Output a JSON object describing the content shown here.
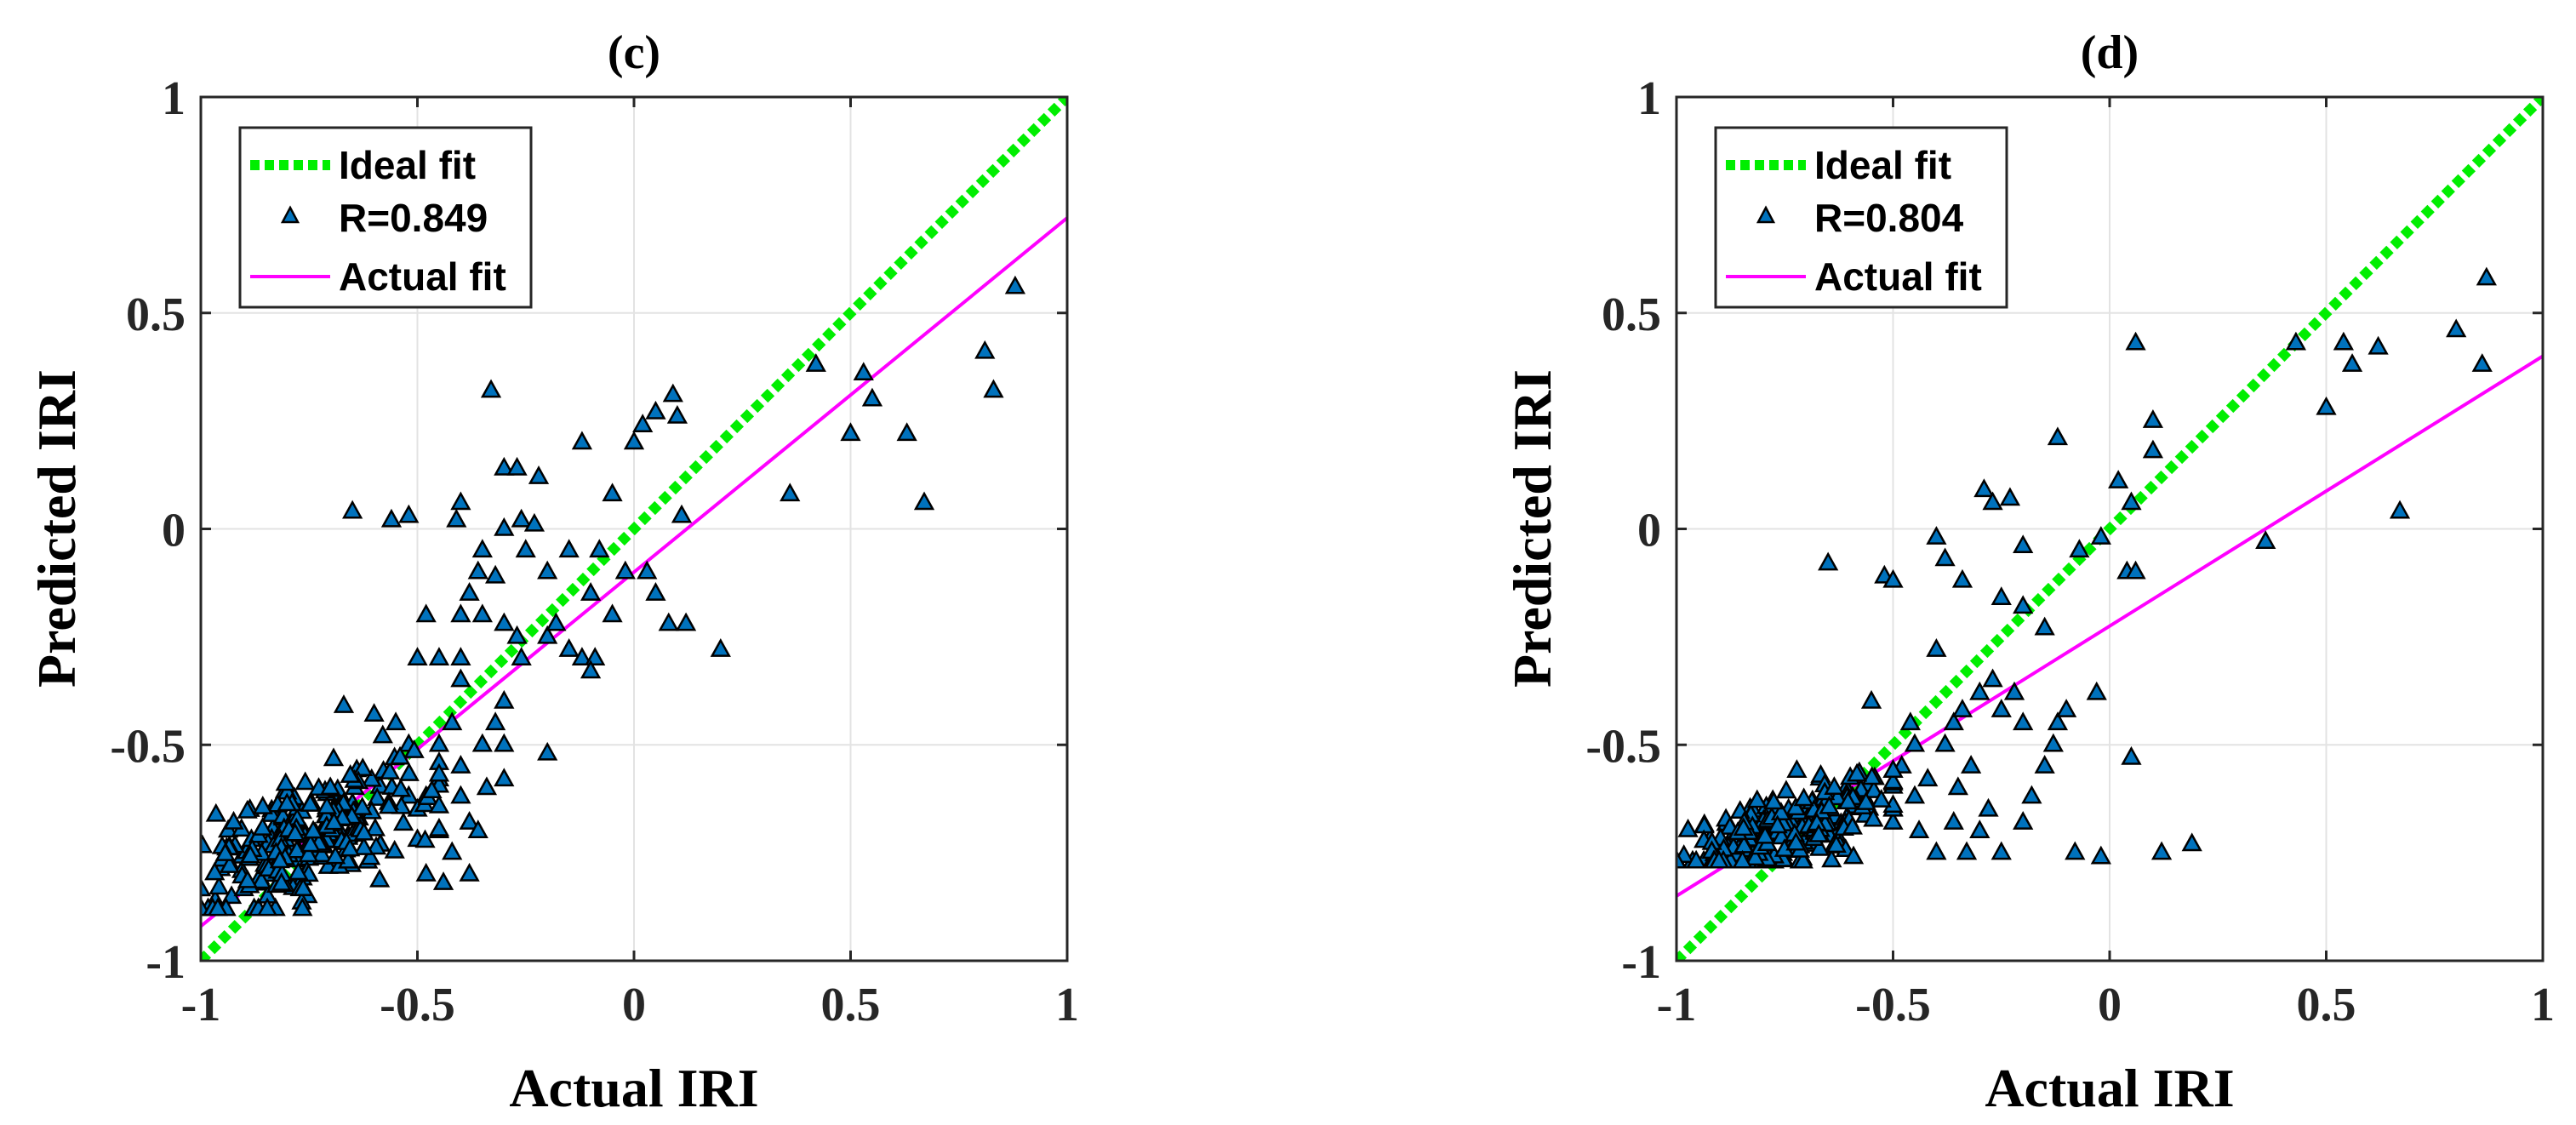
{
  "chart_data": [
    {
      "type": "scatter",
      "title": "(c)",
      "xlabel": "Actual IRI",
      "ylabel": "Predicted IRI",
      "xlim": [
        -1,
        1
      ],
      "ylim": [
        -1,
        1
      ],
      "xticks": [
        "-1",
        "-0.5",
        "0",
        "0.5",
        "1"
      ],
      "yticks": [
        "-1",
        "-0.5",
        "0",
        "0.5",
        "1"
      ],
      "grid": true,
      "legend_position": "top-left",
      "legend": {
        "ideal": "Ideal fit",
        "points": "R=0.849",
        "actual": "Actual fit"
      },
      "R": 0.849,
      "colors": {
        "ideal": "#00ee00",
        "actual": "#ff00ff",
        "marker": "#0072bd",
        "marker_edge": "#000000"
      },
      "ideal_fit": {
        "slope": 1,
        "intercept": 0
      },
      "actual_fit": {
        "x": [
          -1,
          1
        ],
        "y": [
          -0.92,
          0.72
        ]
      },
      "cluster": {
        "center": [
          -0.76,
          -0.72
        ],
        "spread": [
          0.12,
          0.07
        ],
        "count": 240,
        "xlim": [
          -1,
          -0.45
        ],
        "ylim": [
          -0.88,
          -0.45
        ],
        "seed": 7
      },
      "points": [
        [
          -0.33,
          0.32
        ],
        [
          -0.05,
          0.08
        ],
        [
          -0.12,
          0.2
        ],
        [
          0.0,
          0.2
        ],
        [
          0.02,
          0.24
        ],
        [
          0.05,
          0.27
        ],
        [
          0.09,
          0.31
        ],
        [
          0.1,
          0.26
        ],
        [
          0.2,
          -0.28
        ],
        [
          0.12,
          -0.22
        ],
        [
          0.42,
          0.38
        ],
        [
          0.53,
          0.36
        ],
        [
          0.55,
          0.3
        ],
        [
          0.5,
          0.22
        ],
        [
          0.63,
          0.22
        ],
        [
          0.67,
          0.06
        ],
        [
          0.36,
          0.08
        ],
        [
          0.81,
          0.41
        ],
        [
          0.83,
          0.32
        ],
        [
          0.88,
          0.56
        ],
        [
          -0.65,
          0.04
        ],
        [
          -0.56,
          0.02
        ],
        [
          -0.52,
          0.03
        ],
        [
          -0.4,
          0.06
        ],
        [
          -0.41,
          0.02
        ],
        [
          -0.3,
          0.14
        ],
        [
          -0.27,
          0.14
        ],
        [
          -0.22,
          0.12
        ],
        [
          -0.26,
          0.02
        ],
        [
          -0.23,
          0.01
        ],
        [
          -0.15,
          -0.05
        ],
        [
          -0.3,
          0.0
        ],
        [
          -0.35,
          -0.05
        ],
        [
          -0.36,
          -0.1
        ],
        [
          -0.38,
          -0.15
        ],
        [
          -0.32,
          -0.11
        ],
        [
          -0.4,
          -0.2
        ],
        [
          -0.35,
          -0.2
        ],
        [
          -0.3,
          -0.22
        ],
        [
          -0.27,
          -0.25
        ],
        [
          -0.2,
          -0.25
        ],
        [
          -0.15,
          -0.28
        ],
        [
          -0.12,
          -0.3
        ],
        [
          -0.09,
          -0.3
        ],
        [
          -0.1,
          -0.33
        ],
        [
          -0.48,
          -0.2
        ],
        [
          -0.45,
          -0.3
        ],
        [
          -0.4,
          -0.35
        ],
        [
          -0.3,
          -0.4
        ],
        [
          -0.26,
          -0.3
        ],
        [
          -0.5,
          -0.3
        ],
        [
          -0.4,
          -0.3
        ],
        [
          -0.2,
          -0.52
        ],
        [
          -0.35,
          -0.5
        ],
        [
          -0.32,
          -0.45
        ],
        [
          -0.3,
          -0.5
        ],
        [
          -0.42,
          -0.45
        ],
        [
          -0.45,
          -0.5
        ],
        [
          -0.52,
          -0.5
        ],
        [
          -0.55,
          -0.45
        ],
        [
          -0.58,
          -0.48
        ],
        [
          -0.6,
          -0.43
        ],
        [
          -0.67,
          -0.41
        ],
        [
          -0.45,
          -0.58
        ],
        [
          -0.4,
          -0.55
        ],
        [
          -0.34,
          -0.6
        ],
        [
          -0.3,
          -0.58
        ],
        [
          -0.48,
          -0.62
        ],
        [
          -0.52,
          -0.62
        ],
        [
          0.03,
          -0.1
        ],
        [
          0.05,
          -0.15
        ],
        [
          -0.02,
          -0.1
        ],
        [
          -0.08,
          -0.05
        ],
        [
          0.08,
          -0.22
        ],
        [
          0.11,
          0.03
        ],
        [
          -0.05,
          -0.2
        ],
        [
          -0.1,
          -0.15
        ],
        [
          -0.18,
          -0.22
        ],
        [
          -0.25,
          -0.05
        ],
        [
          -0.2,
          -0.1
        ],
        [
          -0.45,
          -0.7
        ],
        [
          -0.42,
          -0.75
        ],
        [
          -0.38,
          -0.68
        ],
        [
          -0.5,
          -0.72
        ],
        [
          -0.48,
          -0.8
        ],
        [
          -0.4,
          -0.62
        ],
        [
          -0.36,
          -0.7
        ],
        [
          -0.44,
          -0.82
        ],
        [
          -0.38,
          -0.8
        ],
        [
          -0.5,
          -0.65
        ]
      ]
    },
    {
      "type": "scatter",
      "title": "(d)",
      "xlabel": "Actual IRI",
      "ylabel": "Predicted IRI",
      "xlim": [
        -1,
        1
      ],
      "ylim": [
        -1,
        1
      ],
      "xticks": [
        "-1",
        "-0.5",
        "0",
        "0.5",
        "1"
      ],
      "yticks": [
        "-1",
        "-0.5",
        "0",
        "0.5",
        "1"
      ],
      "grid": true,
      "legend_position": "top-left",
      "legend": {
        "ideal": "Ideal fit",
        "points": "R=0.804",
        "actual": "Actual fit"
      },
      "R": 0.804,
      "colors": {
        "ideal": "#00ee00",
        "actual": "#ff00ff",
        "marker": "#0072bd",
        "marker_edge": "#000000"
      },
      "ideal_fit": {
        "slope": 1,
        "intercept": 0
      },
      "actual_fit": {
        "x": [
          -1,
          1
        ],
        "y": [
          -0.85,
          0.4
        ]
      },
      "cluster": {
        "center": [
          -0.75,
          -0.7
        ],
        "spread": [
          0.13,
          0.05
        ],
        "count": 240,
        "xlim": [
          -1,
          -0.5
        ],
        "ylim": [
          -0.77,
          -0.56
        ],
        "seed": 11
      },
      "points": [
        [
          0.06,
          0.43
        ],
        [
          0.1,
          0.25
        ],
        [
          0.1,
          0.18
        ],
        [
          -0.12,
          0.21
        ],
        [
          0.02,
          0.11
        ],
        [
          0.05,
          0.06
        ],
        [
          -0.29,
          0.09
        ],
        [
          -0.27,
          0.06
        ],
        [
          -0.23,
          0.07
        ],
        [
          -0.2,
          -0.04
        ],
        [
          -0.4,
          -0.02
        ],
        [
          -0.38,
          -0.07
        ],
        [
          -0.52,
          -0.11
        ],
        [
          -0.5,
          -0.12
        ],
        [
          -0.34,
          -0.12
        ],
        [
          -0.25,
          -0.16
        ],
        [
          -0.2,
          -0.18
        ],
        [
          -0.65,
          -0.08
        ],
        [
          -0.07,
          -0.05
        ],
        [
          -0.02,
          -0.02
        ],
        [
          0.04,
          -0.1
        ],
        [
          0.06,
          -0.1
        ],
        [
          -0.15,
          -0.23
        ],
        [
          -0.3,
          -0.38
        ],
        [
          -0.22,
          -0.38
        ],
        [
          -0.4,
          -0.28
        ],
        [
          -0.46,
          -0.45
        ],
        [
          -0.45,
          -0.5
        ],
        [
          -0.36,
          -0.45
        ],
        [
          -0.34,
          -0.42
        ],
        [
          -0.27,
          -0.35
        ],
        [
          -0.25,
          -0.42
        ],
        [
          -0.2,
          -0.45
        ],
        [
          -0.12,
          -0.45
        ],
        [
          -0.13,
          -0.5
        ],
        [
          -0.1,
          -0.42
        ],
        [
          -0.15,
          -0.55
        ],
        [
          -0.18,
          -0.62
        ],
        [
          -0.03,
          -0.38
        ],
        [
          -0.55,
          -0.4
        ],
        [
          0.05,
          -0.53
        ],
        [
          -0.08,
          -0.75
        ],
        [
          -0.02,
          -0.76
        ],
        [
          0.12,
          -0.75
        ],
        [
          0.19,
          -0.73
        ],
        [
          -0.25,
          -0.75
        ],
        [
          -0.4,
          -0.75
        ],
        [
          -0.35,
          -0.6
        ],
        [
          -0.32,
          -0.55
        ],
        [
          -0.28,
          -0.65
        ],
        [
          -0.3,
          -0.7
        ],
        [
          -0.45,
          -0.62
        ],
        [
          -0.42,
          -0.58
        ],
        [
          -0.48,
          -0.55
        ],
        [
          -0.36,
          -0.68
        ],
        [
          -0.5,
          -0.68
        ],
        [
          0.36,
          -0.03
        ],
        [
          0.43,
          0.43
        ],
        [
          0.5,
          0.28
        ],
        [
          0.54,
          0.43
        ],
        [
          0.56,
          0.38
        ],
        [
          0.62,
          0.42
        ],
        [
          0.67,
          0.04
        ],
        [
          0.8,
          0.46
        ],
        [
          0.86,
          0.38
        ],
        [
          0.87,
          0.58
        ],
        [
          -0.38,
          -0.5
        ],
        [
          -0.33,
          -0.75
        ],
        [
          -0.44,
          -0.7
        ],
        [
          -0.2,
          -0.68
        ]
      ]
    }
  ]
}
